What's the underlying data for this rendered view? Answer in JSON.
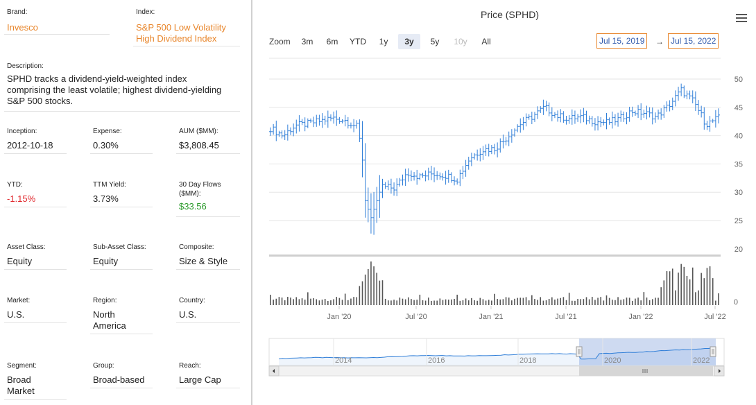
{
  "left": {
    "brand": {
      "label": "Brand:",
      "value": "Invesco"
    },
    "index": {
      "label": "Index:",
      "value1": "S&P 500 Low Volatility",
      "value2": "High Dividend Index"
    },
    "description": {
      "label": "Description:",
      "line1": "SPHD tracks a dividend-yield-weighted index",
      "line2": "comprising the least volatile; highest dividend-yielding",
      "line3": "S&P 500 stocks."
    },
    "inception": {
      "label": "Inception:",
      "value": "2012-10-18"
    },
    "expense": {
      "label": "Expense:",
      "value": "0.30%"
    },
    "aum": {
      "label": "AUM ($MM):",
      "value": "$3,808.45"
    },
    "ytd": {
      "label": "YTD:",
      "value": "-1.15%"
    },
    "ttm": {
      "label": "TTM Yield:",
      "value": "3.73%"
    },
    "flows": {
      "label1": "30 Day Flows",
      "label2": "($MM):",
      "value": "$33.56"
    },
    "asset_class": {
      "label": "Asset Class:",
      "value": "Equity"
    },
    "sub_asset": {
      "label": "Sub-Asset Class:",
      "value": "Equity"
    },
    "composite": {
      "label": "Composite:",
      "value": "Size & Style"
    },
    "market": {
      "label": "Market:",
      "value": "U.S."
    },
    "region": {
      "label": "Region:",
      "value1": "North",
      "value2": "America"
    },
    "country": {
      "label": "Country:",
      "value": "U.S."
    },
    "segment": {
      "label": "Segment:",
      "value1": "Broad",
      "value2": "Market"
    },
    "group": {
      "label": "Group:",
      "value": "Broad-based"
    },
    "reach": {
      "label": "Reach:",
      "value": "Large Cap"
    }
  },
  "toolbar": {
    "zoom_label": "Zoom",
    "buttons": [
      "3m",
      "6m",
      "YTD",
      "1y",
      "3y",
      "5y",
      "10y",
      "All"
    ],
    "selected": "3y",
    "disabled": [
      "10y"
    ],
    "from": "Jul 15, 2019",
    "arrow": "→",
    "to": "Jul 15, 2022"
  },
  "chart_data": {
    "type": "ohlc",
    "title": "Price (SPHD)",
    "price_axis": {
      "ticks": [
        20,
        25,
        30,
        35,
        40,
        45,
        50
      ],
      "range": [
        20,
        52
      ]
    },
    "volume_axis": {
      "ticks": [
        0
      ]
    },
    "x_ticks": [
      "Jan '20",
      "Jul '20",
      "Jan '21",
      "Jul '21",
      "Jan '22",
      "Jul '22"
    ],
    "navigator_ticks": [
      "2014",
      "2016",
      "2018",
      "2020",
      "2022"
    ],
    "weekly_close": [
      {
        "date": "2019-07",
        "close": 41.8
      },
      {
        "date": "2019-08",
        "close": 40.5
      },
      {
        "date": "2019-09",
        "close": 42.3
      },
      {
        "date": "2019-10",
        "close": 42.6
      },
      {
        "date": "2019-11",
        "close": 43.1
      },
      {
        "date": "2019-12",
        "close": 43.6
      },
      {
        "date": "2020-01",
        "close": 43.2
      },
      {
        "date": "2020-02",
        "close": 42.0
      },
      {
        "date": "2020-03",
        "close": 27.5
      },
      {
        "date": "2020-04",
        "close": 31.5
      },
      {
        "date": "2020-05",
        "close": 31.2
      },
      {
        "date": "2020-06",
        "close": 34.0
      },
      {
        "date": "2020-07",
        "close": 33.2
      },
      {
        "date": "2020-08",
        "close": 33.8
      },
      {
        "date": "2020-09",
        "close": 33.5
      },
      {
        "date": "2020-10",
        "close": 32.8
      },
      {
        "date": "2020-11",
        "close": 36.5
      },
      {
        "date": "2020-12",
        "close": 38.0
      },
      {
        "date": "2021-01",
        "close": 38.2
      },
      {
        "date": "2021-02",
        "close": 40.2
      },
      {
        "date": "2021-03",
        "close": 42.5
      },
      {
        "date": "2021-04",
        "close": 43.8
      },
      {
        "date": "2021-05",
        "close": 45.5
      },
      {
        "date": "2021-06",
        "close": 44.0
      },
      {
        "date": "2021-07",
        "close": 43.5
      },
      {
        "date": "2021-08",
        "close": 43.8
      },
      {
        "date": "2021-09",
        "close": 43.0
      },
      {
        "date": "2021-10",
        "close": 42.8
      },
      {
        "date": "2021-11",
        "close": 43.4
      },
      {
        "date": "2021-12",
        "close": 44.8
      },
      {
        "date": "2022-01",
        "close": 44.5
      },
      {
        "date": "2022-02",
        "close": 43.8
      },
      {
        "date": "2022-03",
        "close": 45.8
      },
      {
        "date": "2022-04",
        "close": 48.5
      },
      {
        "date": "2022-05",
        "close": 46.5
      },
      {
        "date": "2022-06",
        "close": 42.5
      },
      {
        "date": "2022-07",
        "close": 43.6
      }
    ]
  },
  "colors": {
    "accent": "#e8852a",
    "series": "#2f7ed8",
    "volume": "#555555",
    "nav_mask": "#c5d4ee",
    "negative": "#e0262b",
    "positive": "#2b9a2b"
  }
}
